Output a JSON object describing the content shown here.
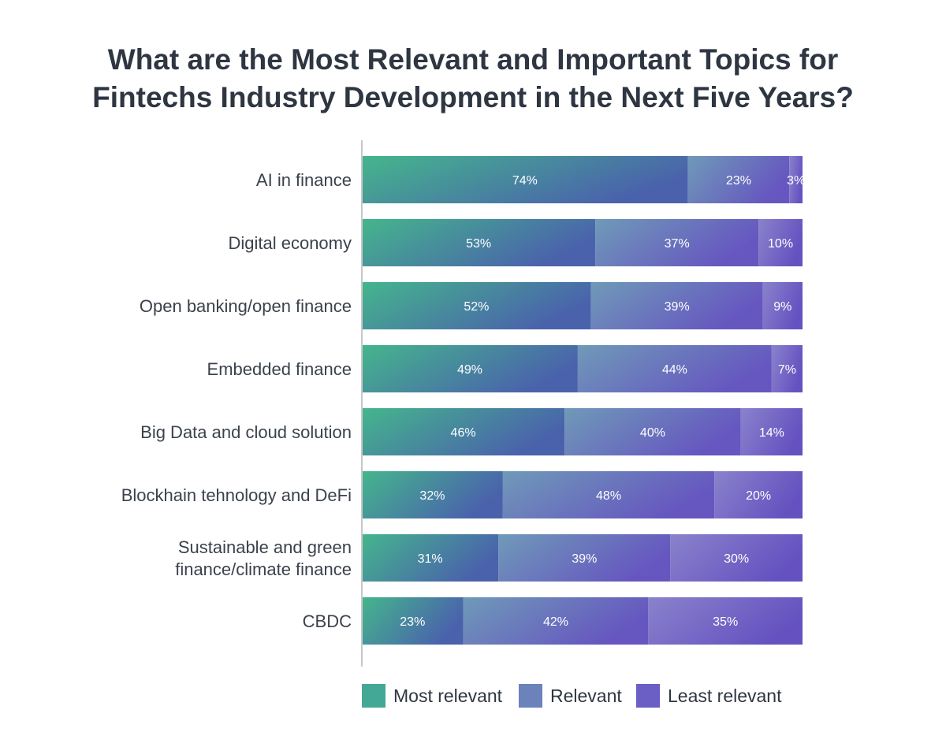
{
  "chart_data": {
    "type": "bar",
    "orientation": "horizontal",
    "stacked": true,
    "title": [
      "What are the Most Relevant and Important Topics for",
      "Fintechs Industry Development in the Next Five Years?"
    ],
    "categories": [
      [
        "AI in finance"
      ],
      [
        "Digital economy"
      ],
      [
        "Open banking/open finance"
      ],
      [
        "Embedded finance"
      ],
      [
        "Big Data and cloud solution"
      ],
      [
        "Blockhain tehnology and DeFi"
      ],
      [
        "Sustainable and green",
        "finance/climate finance"
      ],
      [
        "CBDC"
      ]
    ],
    "series": [
      {
        "name": "Most relevant",
        "values": [
          74,
          53,
          52,
          49,
          46,
          32,
          31,
          23
        ],
        "color": "#44a896"
      },
      {
        "name": "Relevant",
        "values": [
          23,
          37,
          39,
          44,
          40,
          48,
          39,
          42
        ],
        "color": "#6b82bb"
      },
      {
        "name": "Least relevant",
        "values": [
          3,
          10,
          9,
          7,
          14,
          20,
          30,
          35
        ],
        "color": "#6b5ec4"
      }
    ],
    "value_format": "{v}%",
    "xlim": [
      0,
      100
    ],
    "grid": false,
    "legend": "bottom"
  }
}
